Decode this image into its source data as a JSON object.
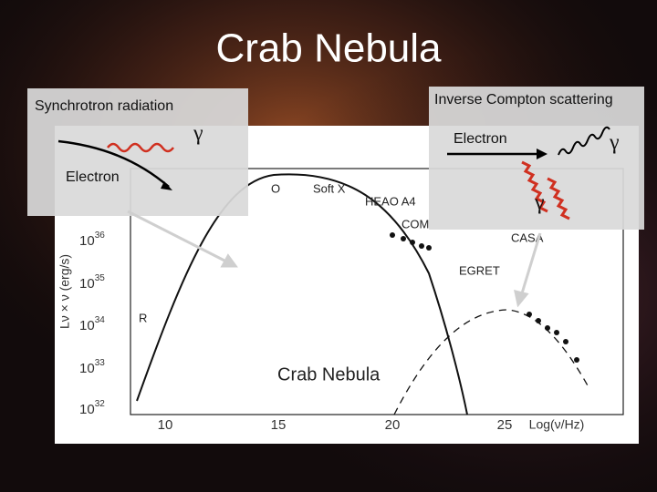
{
  "title": "Crab Nebula",
  "synchrotron": {
    "title": "Synchrotron radiation",
    "gamma": "γ",
    "electron": "Electron"
  },
  "inverse_compton": {
    "title": "Inverse Compton scattering",
    "electron": "Electron",
    "gamma_out": "γ",
    "gamma_in": "γ"
  },
  "plot": {
    "y_label": "Lν × ν (erg/s)",
    "y_ticks": [
      {
        "base": "10",
        "exp": "36"
      },
      {
        "base": "10",
        "exp": "35"
      },
      {
        "base": "10",
        "exp": "34"
      },
      {
        "base": "10",
        "exp": "33"
      },
      {
        "base": "10",
        "exp": "32"
      }
    ],
    "x_ticks": [
      "10",
      "15",
      "20",
      "25"
    ],
    "x_label": "Log(ν/Hz)",
    "annotations": {
      "o": "O",
      "soft_x": "Soft X",
      "heao": "HEAO A4",
      "comptel": "COM",
      "casa": "CASA",
      "egret": "EGRET",
      "r": "R",
      "name": "Crab Nebula"
    }
  }
}
